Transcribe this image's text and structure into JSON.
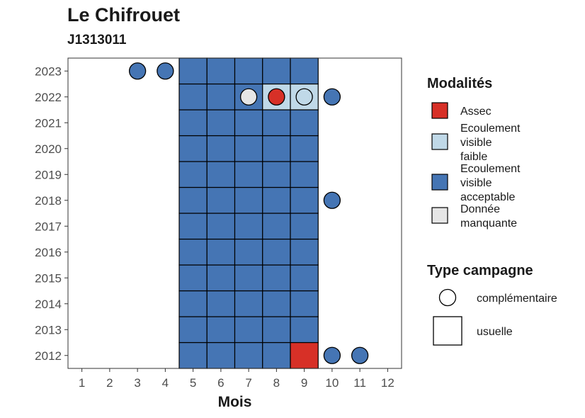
{
  "chart_data": {
    "type": "heatmap",
    "title": "Le Chifrouet",
    "subtitle": "J1313011",
    "xlabel": "Mois",
    "ylabel": "",
    "x_ticks": [
      1,
      2,
      3,
      4,
      5,
      6,
      7,
      8,
      9,
      10,
      11,
      12
    ],
    "y_ticks": [
      2012,
      2013,
      2014,
      2015,
      2016,
      2017,
      2018,
      2019,
      2020,
      2021,
      2022,
      2023
    ],
    "xlim": [
      0.5,
      12.5
    ],
    "ylim": [
      2011.5,
      2023.5
    ],
    "grid": false,
    "legend_position": "right",
    "modalites": {
      "title": "Modalités",
      "items": [
        {
          "key": "assec",
          "label_lines": [
            "Assec"
          ],
          "color": "#d73027"
        },
        {
          "key": "faible",
          "label_lines": [
            "Ecoulement",
            "visible",
            "faible"
          ],
          "color": "#c0d9e8"
        },
        {
          "key": "acceptable",
          "label_lines": [
            "Ecoulement",
            "visible",
            "acceptable"
          ],
          "color": "#4575b4"
        },
        {
          "key": "manquante",
          "label_lines": [
            "Donnée",
            "manquante"
          ],
          "color": "#e6e6e6"
        }
      ]
    },
    "campagne": {
      "title": "Type campagne",
      "items": [
        {
          "key": "complementaire",
          "label": "complémentaire",
          "shape": "circle"
        },
        {
          "key": "usuelle",
          "label": "usuelle",
          "shape": "square"
        }
      ]
    },
    "usuelle_tiles": {
      "months": [
        5,
        6,
        7,
        8,
        9
      ],
      "years": [
        2012,
        2013,
        2014,
        2015,
        2016,
        2017,
        2018,
        2019,
        2020,
        2021,
        2022,
        2023
      ],
      "default": "acceptable",
      "exceptions": [
        {
          "year": 2012,
          "month": 9,
          "modalite": "assec"
        },
        {
          "year": 2022,
          "month": 8,
          "modalite": "faible"
        },
        {
          "year": 2022,
          "month": 9,
          "modalite": "faible"
        }
      ]
    },
    "complementaire_points": [
      {
        "year": 2023,
        "month": 3,
        "modalite": "acceptable"
      },
      {
        "year": 2023,
        "month": 4,
        "modalite": "acceptable"
      },
      {
        "year": 2022,
        "month": 7,
        "modalite": "manquante"
      },
      {
        "year": 2022,
        "month": 8,
        "modalite": "assec"
      },
      {
        "year": 2022,
        "month": 9,
        "modalite": "faible"
      },
      {
        "year": 2022,
        "month": 10,
        "modalite": "acceptable"
      },
      {
        "year": 2018,
        "month": 10,
        "modalite": "acceptable"
      },
      {
        "year": 2012,
        "month": 10,
        "modalite": "acceptable"
      },
      {
        "year": 2012,
        "month": 11,
        "modalite": "acceptable"
      }
    ]
  }
}
